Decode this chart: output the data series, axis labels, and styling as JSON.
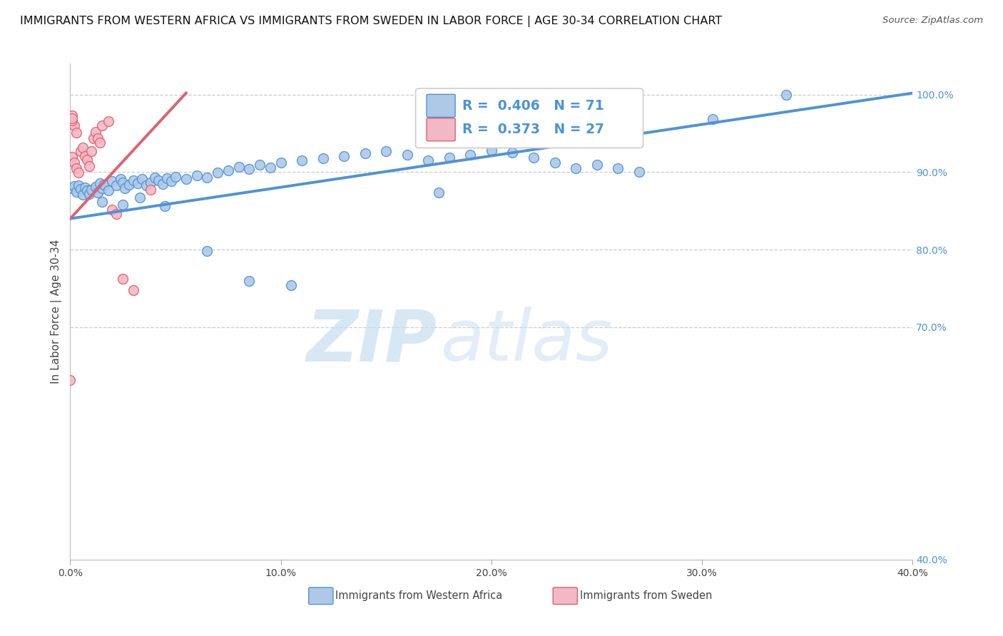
{
  "title": "IMMIGRANTS FROM WESTERN AFRICA VS IMMIGRANTS FROM SWEDEN IN LABOR FORCE | AGE 30-34 CORRELATION CHART",
  "source": "Source: ZipAtlas.com",
  "ylabel": "In Labor Force | Age 30-34",
  "xlim": [
    0.0,
    0.4
  ],
  "ylim": [
    0.4,
    1.04
  ],
  "xtick_vals": [
    0.0,
    0.1,
    0.2,
    0.3,
    0.4
  ],
  "xtick_labels": [
    "0.0%",
    "10.0%",
    "20.0%",
    "30.0%",
    "40.0%"
  ],
  "ytick_vals": [
    1.0,
    0.9,
    0.8,
    0.7
  ],
  "ytick_labels": [
    "100.0%",
    "90.0%",
    "80.0%",
    "70.0%"
  ],
  "ytick_bottom_val": 0.4,
  "ytick_bottom_label": "40.0%",
  "blue_R": 0.406,
  "blue_N": 71,
  "pink_R": 0.373,
  "pink_N": 27,
  "blue_label": "Immigrants from Western Africa",
  "pink_label": "Immigrants from Sweden",
  "blue_scatter_x": [
    0.001,
    0.002,
    0.003,
    0.004,
    0.005,
    0.006,
    0.007,
    0.008,
    0.009,
    0.01,
    0.012,
    0.013,
    0.014,
    0.015,
    0.016,
    0.018,
    0.02,
    0.022,
    0.024,
    0.025,
    0.026,
    0.028,
    0.03,
    0.032,
    0.034,
    0.036,
    0.038,
    0.04,
    0.042,
    0.044,
    0.046,
    0.048,
    0.05,
    0.055,
    0.06,
    0.065,
    0.07,
    0.075,
    0.08,
    0.085,
    0.09,
    0.095,
    0.1,
    0.11,
    0.12,
    0.13,
    0.14,
    0.15,
    0.16,
    0.17,
    0.18,
    0.19,
    0.2,
    0.21,
    0.22,
    0.23,
    0.24,
    0.25,
    0.26,
    0.27,
    0.033,
    0.015,
    0.025,
    0.045,
    0.065,
    0.085,
    0.105,
    0.195,
    0.305,
    0.34,
    0.175
  ],
  "blue_scatter_y": [
    0.879,
    0.882,
    0.875,
    0.883,
    0.878,
    0.871,
    0.88,
    0.876,
    0.872,
    0.877,
    0.881,
    0.874,
    0.886,
    0.879,
    0.884,
    0.876,
    0.888,
    0.883,
    0.891,
    0.887,
    0.879,
    0.884,
    0.889,
    0.886,
    0.891,
    0.883,
    0.887,
    0.893,
    0.889,
    0.885,
    0.892,
    0.888,
    0.894,
    0.891,
    0.896,
    0.893,
    0.899,
    0.902,
    0.907,
    0.904,
    0.91,
    0.906,
    0.912,
    0.915,
    0.918,
    0.921,
    0.924,
    0.927,
    0.922,
    0.915,
    0.919,
    0.922,
    0.928,
    0.925,
    0.919,
    0.912,
    0.905,
    0.91,
    0.905,
    0.9,
    0.867,
    0.862,
    0.858,
    0.856,
    0.798,
    0.76,
    0.754,
    0.95,
    0.968,
    1.0,
    0.874
  ],
  "pink_scatter_x": [
    0.001,
    0.002,
    0.003,
    0.004,
    0.005,
    0.006,
    0.007,
    0.008,
    0.009,
    0.01,
    0.011,
    0.012,
    0.013,
    0.014,
    0.015,
    0.018,
    0.02,
    0.022,
    0.025,
    0.03,
    0.002,
    0.003,
    0.001,
    0.001,
    0.001,
    0.0,
    0.038
  ],
  "pink_scatter_y": [
    0.92,
    0.912,
    0.905,
    0.899,
    0.927,
    0.932,
    0.921,
    0.916,
    0.908,
    0.927,
    0.944,
    0.952,
    0.944,
    0.938,
    0.96,
    0.966,
    0.852,
    0.846,
    0.762,
    0.748,
    0.96,
    0.951,
    0.967,
    0.973,
    0.969,
    0.632,
    0.877
  ],
  "blue_line_x": [
    0.0,
    0.4
  ],
  "blue_line_y": [
    0.84,
    1.002
  ],
  "pink_line_x": [
    0.0,
    0.055
  ],
  "pink_line_y": [
    0.84,
    1.002
  ],
  "blue_color": "#4d94d5",
  "pink_color": "#e06070",
  "blue_fill": "#aec8e8",
  "pink_fill": "#f2b8c6",
  "watermark_zip": "ZIP",
  "watermark_atlas": "atlas",
  "background_color": "#ffffff",
  "grid_color": "#cccccc",
  "title_fontsize": 11.5,
  "axis_label_fontsize": 11
}
